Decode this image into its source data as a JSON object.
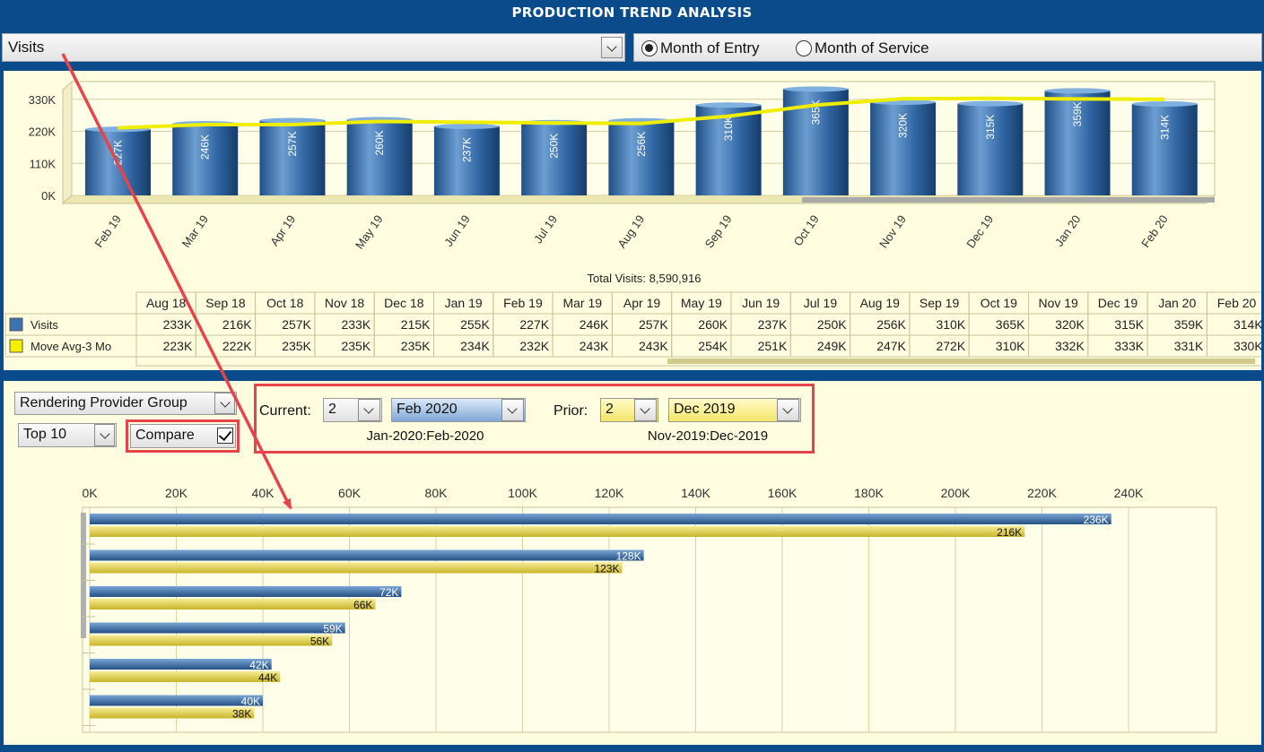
{
  "header": {
    "title": "PRODUCTION TREND ANALYSIS"
  },
  "metric": {
    "selected": "Visits"
  },
  "basis": {
    "options": [
      {
        "label": "Month of Entry",
        "selected": true
      },
      {
        "label": "Month of Service",
        "selected": false
      }
    ]
  },
  "trend_total_label": "Total Visits: 8,590,916",
  "table": {
    "months": [
      "Aug 18",
      "Sep 18",
      "Oct 18",
      "Nov 18",
      "Dec 18",
      "Jan 19",
      "Feb 19",
      "Mar 19",
      "Apr 19",
      "May 19",
      "Jun 19",
      "Jul 19",
      "Aug 19",
      "Sep 19",
      "Oct 19",
      "Nov 19",
      "Dec 19",
      "Jan 20",
      "Feb 20"
    ],
    "rows": [
      {
        "label": "Visits",
        "color": "#3c73b0",
        "values": [
          "233K",
          "216K",
          "257K",
          "233K",
          "215K",
          "255K",
          "227K",
          "246K",
          "257K",
          "260K",
          "237K",
          "250K",
          "256K",
          "310K",
          "365K",
          "320K",
          "315K",
          "359K",
          "314K"
        ]
      },
      {
        "label": "Move Avg-3 Mo",
        "color": "#f5ef00",
        "values": [
          "223K",
          "222K",
          "235K",
          "235K",
          "235K",
          "234K",
          "232K",
          "243K",
          "243K",
          "254K",
          "251K",
          "249K",
          "247K",
          "272K",
          "310K",
          "332K",
          "333K",
          "331K",
          "330K"
        ]
      }
    ]
  },
  "controls": {
    "group_by": "Rendering Provider Group",
    "top_n": "Top 10",
    "compare_label": "Compare",
    "compare_checked": true,
    "current_label": "Current:",
    "current_count": "2",
    "current_month": "Feb 2020",
    "current_range": "Jan-2020:Feb-2020",
    "prior_label": "Prior:",
    "prior_count": "2",
    "prior_month": "Dec 2019",
    "prior_range": "Nov-2019:Dec-2019"
  },
  "chart_data": [
    {
      "type": "bar",
      "title": "",
      "categories": [
        "Feb 19",
        "Mar 19",
        "Apr 19",
        "May 19",
        "Jun 19",
        "Jul 19",
        "Aug 19",
        "Sep 19",
        "Oct 19",
        "Nov 19",
        "Dec 19",
        "Jan 20",
        "Feb 20"
      ],
      "series": [
        {
          "name": "Visits",
          "values": [
            227,
            246,
            257,
            260,
            237,
            250,
            256,
            310,
            365,
            320,
            315,
            359,
            314
          ],
          "labels": [
            "227K",
            "246K",
            "257K",
            "260K",
            "237K",
            "250K",
            "256K",
            "310K",
            "365K",
            "320K",
            "315K",
            "359K",
            "314K"
          ],
          "color": "#3c73b0"
        },
        {
          "name": "Move Avg-3 Mo",
          "type": "line",
          "values": [
            232,
            243,
            243,
            254,
            251,
            249,
            247,
            272,
            310,
            332,
            333,
            331,
            330
          ],
          "color": "#f0ee00"
        }
      ],
      "ylim": [
        0,
        360
      ],
      "yticks": [
        0,
        110,
        220,
        330
      ],
      "ytick_labels": [
        "0K",
        "110K",
        "220K",
        "330K"
      ],
      "xlabel": "",
      "ylabel": ""
    },
    {
      "type": "bar",
      "orientation": "horizontal",
      "title": "",
      "xlim": [
        0,
        260
      ],
      "xticks": [
        0,
        20,
        40,
        60,
        80,
        100,
        120,
        140,
        160,
        180,
        200,
        220,
        240
      ],
      "xtick_labels": [
        "0K",
        "20K",
        "40K",
        "60K",
        "80K",
        "100K",
        "120K",
        "140K",
        "160K",
        "180K",
        "200K",
        "220K",
        "240K"
      ],
      "series": [
        {
          "name": "Current",
          "values": [
            236,
            128,
            72,
            59,
            42,
            40
          ],
          "labels": [
            "236K",
            "128K",
            "72K",
            "59K",
            "42K",
            "40K"
          ],
          "color": "#3c73b0"
        },
        {
          "name": "Prior",
          "values": [
            216,
            123,
            66,
            56,
            44,
            38
          ],
          "labels": [
            "216K",
            "123K",
            "66K",
            "56K",
            "44K",
            "38K"
          ],
          "color": "#e3d23a"
        }
      ]
    }
  ],
  "colors": {
    "banner": "#0a4b8c",
    "panel_bg": "#fffde0",
    "highlight": "#e8434a"
  }
}
